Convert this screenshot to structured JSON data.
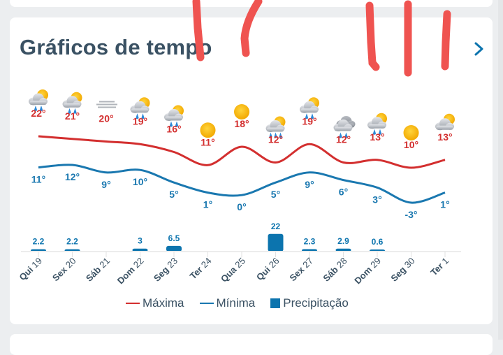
{
  "header": {
    "title": "Gráficos de tempo",
    "next_icon": "chevron-right-icon"
  },
  "colors": {
    "max": "#d32f2f",
    "min": "#1a78b0",
    "precip": "#0c74ae",
    "title": "#3a5163",
    "background": "#eceef0"
  },
  "chart_data": {
    "type": "line",
    "title": "Gráficos de tempo",
    "categories": [
      "Qui 19",
      "Sex 20",
      "Sáb 21",
      "Dom 22",
      "Seg 23",
      "Ter 24",
      "Qua 25",
      "Qui 26",
      "Sex 27",
      "Sáb 28",
      "Dom 29",
      "Seg 30",
      "Ter 1"
    ],
    "weather_icons": [
      "sun-cloud-rain",
      "sun-cloud-rain",
      "fog",
      "sun-cloud-rain",
      "sun-cloud-rain",
      "sun",
      "sun",
      "sun-cloud-heavy-rain",
      "sun-cloud-rain",
      "cloud-rain",
      "sun-cloud-rain",
      "sun",
      "sun-cloud"
    ],
    "series": [
      {
        "name": "Máxima",
        "type": "line",
        "color": "#d32f2f",
        "values": [
          22,
          21,
          20,
          19,
          16,
          11,
          18,
          12,
          19,
          12,
          13,
          10,
          13
        ]
      },
      {
        "name": "Mínima",
        "type": "line",
        "color": "#1a78b0",
        "values": [
          11,
          12,
          9,
          10,
          5,
          1,
          0,
          5,
          9,
          6,
          3,
          -3,
          1
        ]
      },
      {
        "name": "Precipitação",
        "type": "bar",
        "color": "#0c74ae",
        "values": [
          2.2,
          2.2,
          0,
          3,
          6.5,
          0,
          0,
          22,
          2.3,
          2.9,
          0.6,
          0,
          0
        ],
        "labels": [
          "2.2",
          "2.2",
          "",
          "3",
          "6.5",
          "",
          "",
          "22",
          "2.3",
          "2.9",
          "0.6",
          "",
          ""
        ]
      }
    ],
    "xlabel": "",
    "ylabel": "",
    "grid": false,
    "legend_position": "bottom"
  },
  "legend": {
    "max_label": "Máxima",
    "min_label": "Mínima",
    "precip_label": "Precipitação"
  }
}
